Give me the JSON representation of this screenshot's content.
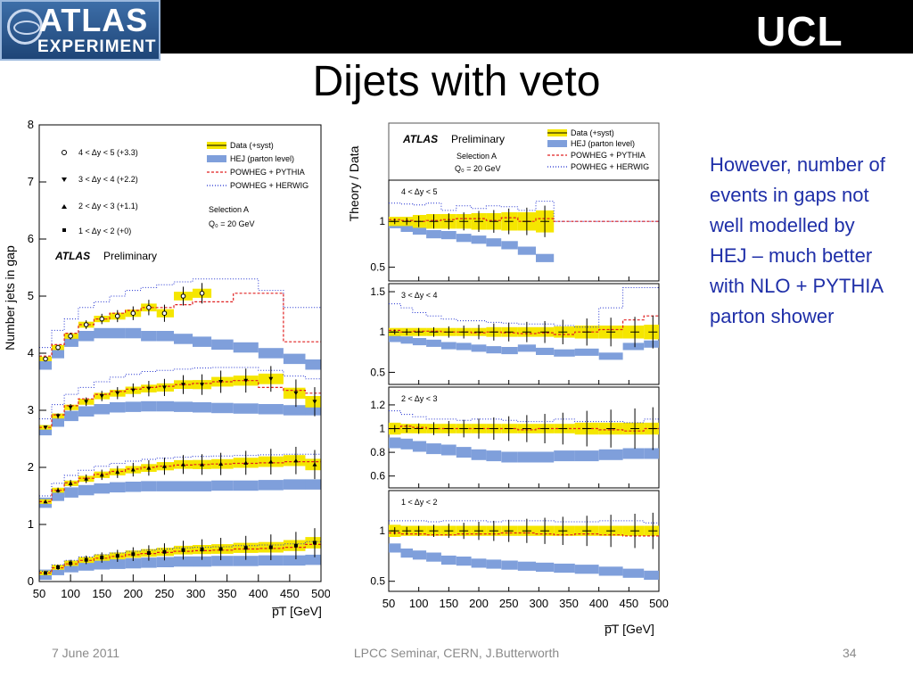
{
  "header": {
    "logo_line1": "ATLAS",
    "logo_line2": "EXPERIMENT",
    "institution": "UCL"
  },
  "slide": {
    "title": "Dijets with veto",
    "note": "However, number of events in gaps not well modelled by HEJ – much better with NLO + PYTHIA parton shower"
  },
  "footer": {
    "date": "7 June 2011",
    "event": "LPCC Seminar, CERN, J.Butterworth",
    "page": "34"
  },
  "colors": {
    "data_band": "#f5e600",
    "hej": "#7f9fdb",
    "powheg_pythia": "#e02020",
    "powheg_herwig": "#2030d0"
  },
  "chart_data": [
    {
      "type": "line",
      "ylabel": "Number jets in gap",
      "xlabel": "p̅T [GeV]",
      "xlim": [
        50,
        500
      ],
      "ylim": [
        0,
        8
      ],
      "xticks": [
        50,
        100,
        150,
        200,
        250,
        300,
        350,
        400,
        450,
        500
      ],
      "yticks": [
        0,
        1,
        2,
        3,
        4,
        5,
        6,
        7,
        8
      ],
      "legend_markers": [
        "4 < Δy < 5 (+3.3)",
        "3 < Δy < 4 (+2.2)",
        "2 < Δy < 3 (+1.1)",
        "1 < Δy < 2 (+0)"
      ],
      "legend": [
        "Data (+syst)",
        "HEJ (parton level)",
        "POWHEG + PYTHIA",
        "POWHEG + HERWIG"
      ],
      "selection": "Selection A",
      "q0": "Q₀ = 20 GeV",
      "atlas_label": "ATLAS",
      "atlas_sub": "Preliminary",
      "grid": false,
      "x": [
        60,
        80,
        100,
        125,
        150,
        175,
        200,
        225,
        250,
        280,
        310,
        340,
        380,
        420,
        460,
        490
      ],
      "series": [
        {
          "data": [
            3.9,
            4.1,
            4.3,
            4.5,
            4.6,
            4.65,
            4.7,
            4.8,
            4.7,
            5.0,
            5.05,
            null,
            null,
            null,
            null,
            null
          ],
          "hej": [
            3.8,
            4.0,
            4.2,
            4.3,
            4.35,
            4.35,
            4.35,
            4.3,
            4.3,
            4.25,
            4.2,
            4.15,
            4.1,
            4.0,
            3.9,
            3.8
          ],
          "powheg_pythia": [
            3.95,
            4.15,
            4.35,
            4.5,
            4.6,
            4.7,
            4.75,
            4.8,
            4.8,
            4.85,
            4.9,
            4.9,
            5.05,
            5.05,
            4.2,
            4.2
          ],
          "powheg_herwig": [
            4.1,
            4.4,
            4.6,
            4.8,
            4.9,
            5.0,
            5.1,
            5.15,
            5.2,
            5.25,
            5.3,
            5.3,
            5.3,
            5.1,
            4.8,
            4.8
          ]
        },
        {
          "data": [
            2.7,
            2.9,
            3.05,
            3.15,
            3.25,
            3.3,
            3.35,
            3.38,
            3.4,
            3.45,
            3.45,
            3.5,
            3.52,
            3.55,
            3.3,
            3.15
          ],
          "hej": [
            2.65,
            2.8,
            2.9,
            2.98,
            3.02,
            3.05,
            3.06,
            3.07,
            3.07,
            3.06,
            3.05,
            3.04,
            3.03,
            3.02,
            3.0,
            3.0
          ],
          "powheg_pythia": [
            2.7,
            2.92,
            3.08,
            3.2,
            3.28,
            3.33,
            3.37,
            3.4,
            3.42,
            3.45,
            3.47,
            3.5,
            3.52,
            3.4,
            3.35,
            3.3
          ],
          "powheg_herwig": [
            2.85,
            3.1,
            3.28,
            3.4,
            3.5,
            3.58,
            3.63,
            3.68,
            3.7,
            3.72,
            3.74,
            3.75,
            3.75,
            3.7,
            3.6,
            3.55
          ]
        },
        {
          "data": [
            1.4,
            1.6,
            1.72,
            1.8,
            1.87,
            1.92,
            1.96,
            1.99,
            2.02,
            2.05,
            2.05,
            2.06,
            2.08,
            2.1,
            2.12,
            2.05
          ],
          "hej": [
            1.38,
            1.5,
            1.56,
            1.6,
            1.63,
            1.65,
            1.66,
            1.67,
            1.67,
            1.67,
            1.67,
            1.68,
            1.68,
            1.69,
            1.7,
            1.7
          ],
          "powheg_pythia": [
            1.4,
            1.6,
            1.73,
            1.81,
            1.88,
            1.93,
            1.97,
            2.0,
            2.02,
            2.04,
            2.05,
            2.06,
            2.07,
            2.08,
            2.1,
            2.1
          ],
          "powheg_herwig": [
            1.5,
            1.72,
            1.86,
            1.95,
            2.02,
            2.07,
            2.11,
            2.14,
            2.16,
            2.18,
            2.19,
            2.2,
            2.21,
            2.22,
            2.23,
            2.23
          ]
        },
        {
          "data": [
            0.15,
            0.25,
            0.32,
            0.38,
            0.42,
            0.45,
            0.48,
            0.5,
            0.52,
            0.55,
            0.56,
            0.57,
            0.59,
            0.6,
            0.63,
            0.68
          ],
          "hej": [
            0.12,
            0.2,
            0.25,
            0.28,
            0.3,
            0.31,
            0.32,
            0.33,
            0.34,
            0.35,
            0.35,
            0.36,
            0.36,
            0.37,
            0.37,
            0.38
          ],
          "powheg_pythia": [
            0.15,
            0.24,
            0.31,
            0.37,
            0.41,
            0.44,
            0.47,
            0.49,
            0.51,
            0.53,
            0.54,
            0.55,
            0.57,
            0.58,
            0.6,
            0.65
          ],
          "powheg_herwig": [
            0.18,
            0.29,
            0.37,
            0.43,
            0.47,
            0.5,
            0.53,
            0.55,
            0.57,
            0.59,
            0.6,
            0.61,
            0.63,
            0.64,
            0.66,
            0.7
          ]
        }
      ]
    },
    {
      "type": "line",
      "ylabel": "Theory / Data",
      "xlabel": "p̅T [GeV]",
      "xlim": [
        50,
        500
      ],
      "xticks": [
        50,
        100,
        150,
        200,
        250,
        300,
        350,
        400,
        450,
        500
      ],
      "legend": [
        "Data (+syst)",
        "HEJ (parton level)",
        "POWHEG + PYTHIA",
        "POWHEG + HERWIG"
      ],
      "selection": "Selection A",
      "q0": "Q₀ = 20 GeV",
      "atlas_label": "ATLAS",
      "atlas_sub": "Preliminary",
      "x": [
        60,
        80,
        100,
        125,
        150,
        175,
        200,
        225,
        250,
        280,
        310,
        340,
        380,
        420,
        460,
        490
      ],
      "panels": [
        {
          "label": "4 < Δy < 5",
          "ylim": [
            0.35,
            1.45
          ],
          "yticks": [
            0.5,
            1
          ],
          "band": [
            0.05,
            0.05,
            0.07,
            0.08,
            0.08,
            0.08,
            0.09,
            0.09,
            0.1,
            0.1,
            0.12,
            null,
            null,
            null,
            null,
            null
          ],
          "hej": [
            0.97,
            0.93,
            0.9,
            0.86,
            0.85,
            0.82,
            0.8,
            0.77,
            0.74,
            0.68,
            0.6,
            null,
            null,
            null,
            null,
            null
          ],
          "powheg_pythia": [
            1.02,
            1.01,
            1.0,
            1.01,
            1.02,
            1.03,
            1.03,
            1.01,
            1.04,
            1.0,
            1.03,
            1.0,
            1.0,
            1.0,
            1.0,
            1.0
          ],
          "powheg_herwig": [
            1.2,
            1.19,
            1.18,
            1.2,
            1.12,
            1.17,
            1.14,
            1.17,
            1.16,
            1.12,
            1.22,
            1.0,
            1.0,
            1.0,
            1.0,
            1.0
          ]
        },
        {
          "label": "3 < Δy < 4",
          "ylim": [
            0.35,
            1.6
          ],
          "yticks": [
            0.5,
            1,
            1.5
          ],
          "band": [
            0.05,
            0.05,
            0.05,
            0.05,
            0.05,
            0.05,
            0.05,
            0.06,
            0.06,
            0.06,
            0.06,
            0.07,
            0.08,
            0.08,
            0.08,
            0.09
          ],
          "hej": [
            0.92,
            0.9,
            0.88,
            0.86,
            0.83,
            0.82,
            0.8,
            0.78,
            0.77,
            0.8,
            0.76,
            0.74,
            0.75,
            0.7,
            0.82,
            0.85
          ],
          "powheg_pythia": [
            1.02,
            1.0,
            1.01,
            1.01,
            1.0,
            1.0,
            0.99,
            1.0,
            0.99,
            0.98,
            0.99,
            0.97,
            1.0,
            1.03,
            1.15,
            1.2
          ],
          "powheg_herwig": [
            1.35,
            1.3,
            1.24,
            1.2,
            1.16,
            1.14,
            1.14,
            1.12,
            1.11,
            1.1,
            1.1,
            1.08,
            1.06,
            1.3,
            1.55,
            1.55
          ]
        },
        {
          "label": "2 < Δy < 3",
          "ylim": [
            0.5,
            1.35
          ],
          "yticks": [
            0.6,
            0.8,
            1,
            1.2
          ],
          "band": [
            0.05,
            0.04,
            0.04,
            0.04,
            0.04,
            0.04,
            0.04,
            0.04,
            0.04,
            0.04,
            0.04,
            0.04,
            0.05,
            0.05,
            0.05,
            0.05
          ],
          "hej": [
            0.88,
            0.87,
            0.85,
            0.83,
            0.82,
            0.8,
            0.78,
            0.77,
            0.76,
            0.76,
            0.76,
            0.77,
            0.77,
            0.78,
            0.79,
            0.79
          ],
          "powheg_pythia": [
            1.0,
            1.02,
            1.01,
            1.0,
            1.0,
            1.0,
            1.0,
            1.0,
            1.0,
            0.99,
            1.0,
            1.0,
            1.0,
            0.99,
            0.98,
            1.0
          ],
          "powheg_herwig": [
            1.15,
            1.12,
            1.1,
            1.08,
            1.08,
            1.07,
            1.08,
            1.08,
            1.07,
            1.06,
            1.06,
            1.08,
            1.06,
            1.06,
            1.05,
            1.08
          ]
        },
        {
          "label": "1 < Δy < 2",
          "ylim": [
            0.4,
            1.4
          ],
          "yticks": [
            0.5,
            1
          ],
          "band": [
            0.06,
            0.05,
            0.05,
            0.05,
            0.05,
            0.05,
            0.05,
            0.05,
            0.05,
            0.05,
            0.05,
            0.05,
            0.05,
            0.05,
            0.05,
            0.05
          ],
          "hej": [
            0.83,
            0.78,
            0.76,
            0.74,
            0.71,
            0.7,
            0.68,
            0.67,
            0.66,
            0.65,
            0.64,
            0.63,
            0.62,
            0.6,
            0.58,
            0.56
          ],
          "powheg_pythia": [
            0.98,
            0.97,
            0.97,
            0.96,
            0.96,
            0.97,
            0.97,
            0.97,
            0.98,
            0.98,
            0.97,
            0.96,
            0.97,
            0.96,
            0.95,
            0.95
          ],
          "powheg_herwig": [
            1.1,
            1.1,
            1.1,
            1.09,
            1.1,
            1.1,
            1.1,
            1.09,
            1.1,
            1.1,
            1.1,
            1.09,
            1.09,
            1.1,
            1.1,
            1.08
          ]
        }
      ]
    }
  ]
}
